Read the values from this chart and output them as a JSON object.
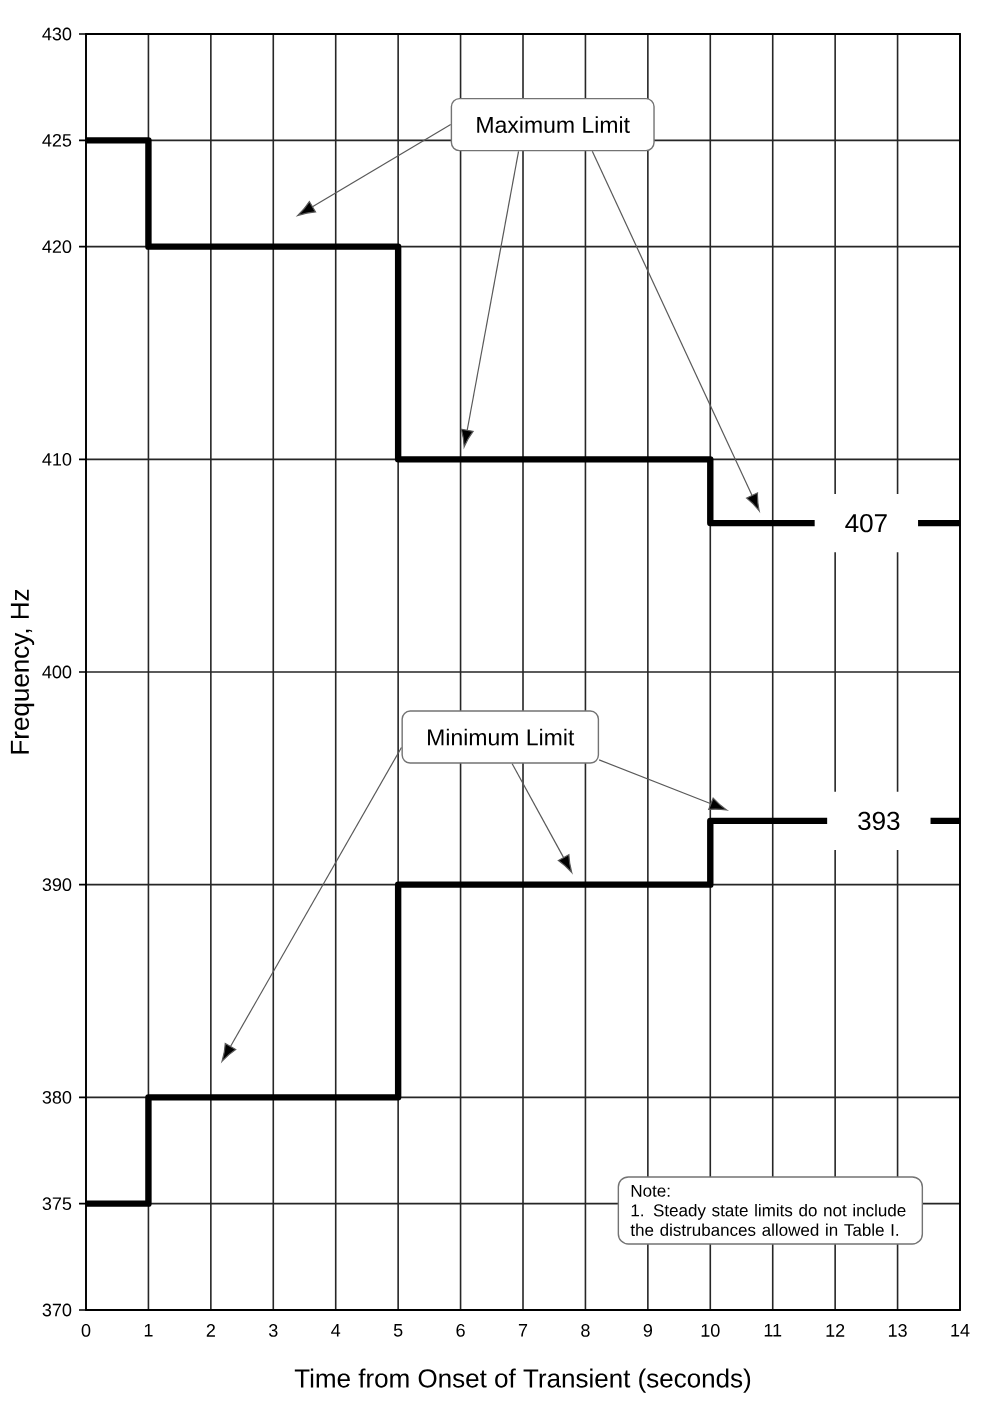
{
  "chart_data": {
    "type": "step",
    "xlabel": "Time from Onset of Transient (seconds)",
    "ylabel": "Frequency, Hz",
    "x": [
      0,
      1,
      5,
      10,
      14
    ],
    "series": [
      {
        "name": "Maximum Limit",
        "color": "#000000",
        "values": [
          425,
          420,
          410,
          407,
          407
        ]
      },
      {
        "name": "Minimum Limit",
        "color": "#000000",
        "values": [
          375,
          380,
          390,
          393,
          393
        ]
      }
    ],
    "xlim": [
      0,
      14
    ],
    "xticks": [
      0,
      1,
      2,
      3,
      4,
      5,
      6,
      7,
      8,
      9,
      10,
      11,
      12,
      13,
      14
    ],
    "ylim": [
      370,
      430
    ],
    "yticks": [
      370,
      375,
      380,
      390,
      400,
      410,
      420,
      425,
      430
    ],
    "annotations": [
      {
        "text": "407",
        "x": 12.5,
        "y": 407
      },
      {
        "text": "393",
        "x": 12.7,
        "y": 393
      },
      "Note:",
      "1. Steady state limits do not include the distrubances allowed in Table I."
    ],
    "grid": true,
    "line_style": "solid"
  }
}
